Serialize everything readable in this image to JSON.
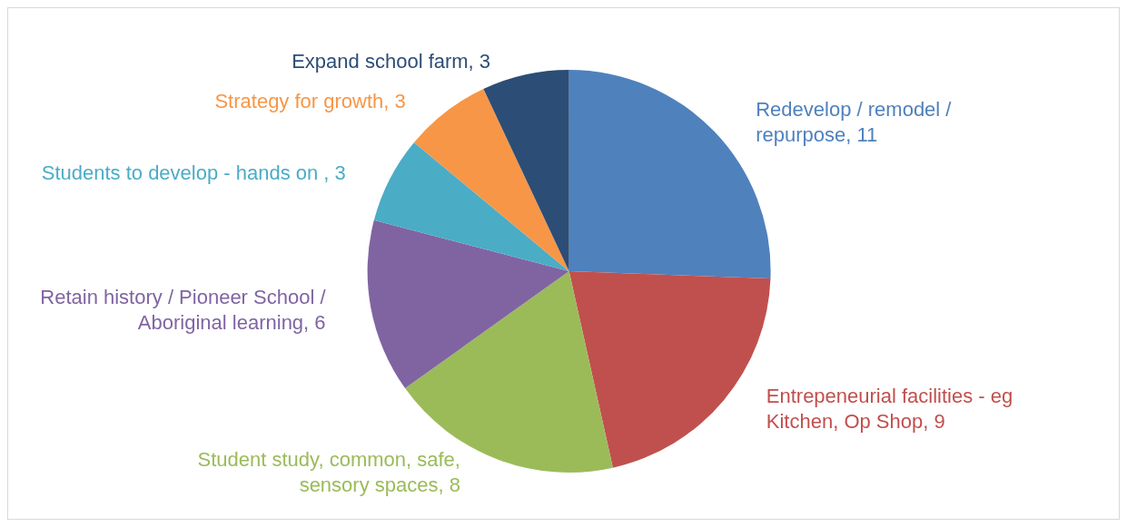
{
  "chart_data": {
    "type": "pie",
    "categories": [
      "Redevelop / remodel / repurpose",
      "Entrepeneurial facilities - eg Kitchen, Op Shop",
      "Student study, common, safe, sensory spaces",
      "Retain history / Pioneer School / Aboriginal learning",
      "Students to develop - hands on ",
      "Strategy for growth",
      "Expand school farm"
    ],
    "values": [
      11,
      9,
      8,
      6,
      3,
      3,
      3
    ],
    "colors": [
      "#4f81bd",
      "#c0504d",
      "#9bbb59",
      "#8064a2",
      "#4bacc6",
      "#f79646",
      "#2c4d75"
    ],
    "value_labels": [
      ", 11",
      ", 9",
      ", 8",
      ", 6",
      ", 3",
      ", 3",
      ", 3"
    ],
    "legend": false
  }
}
